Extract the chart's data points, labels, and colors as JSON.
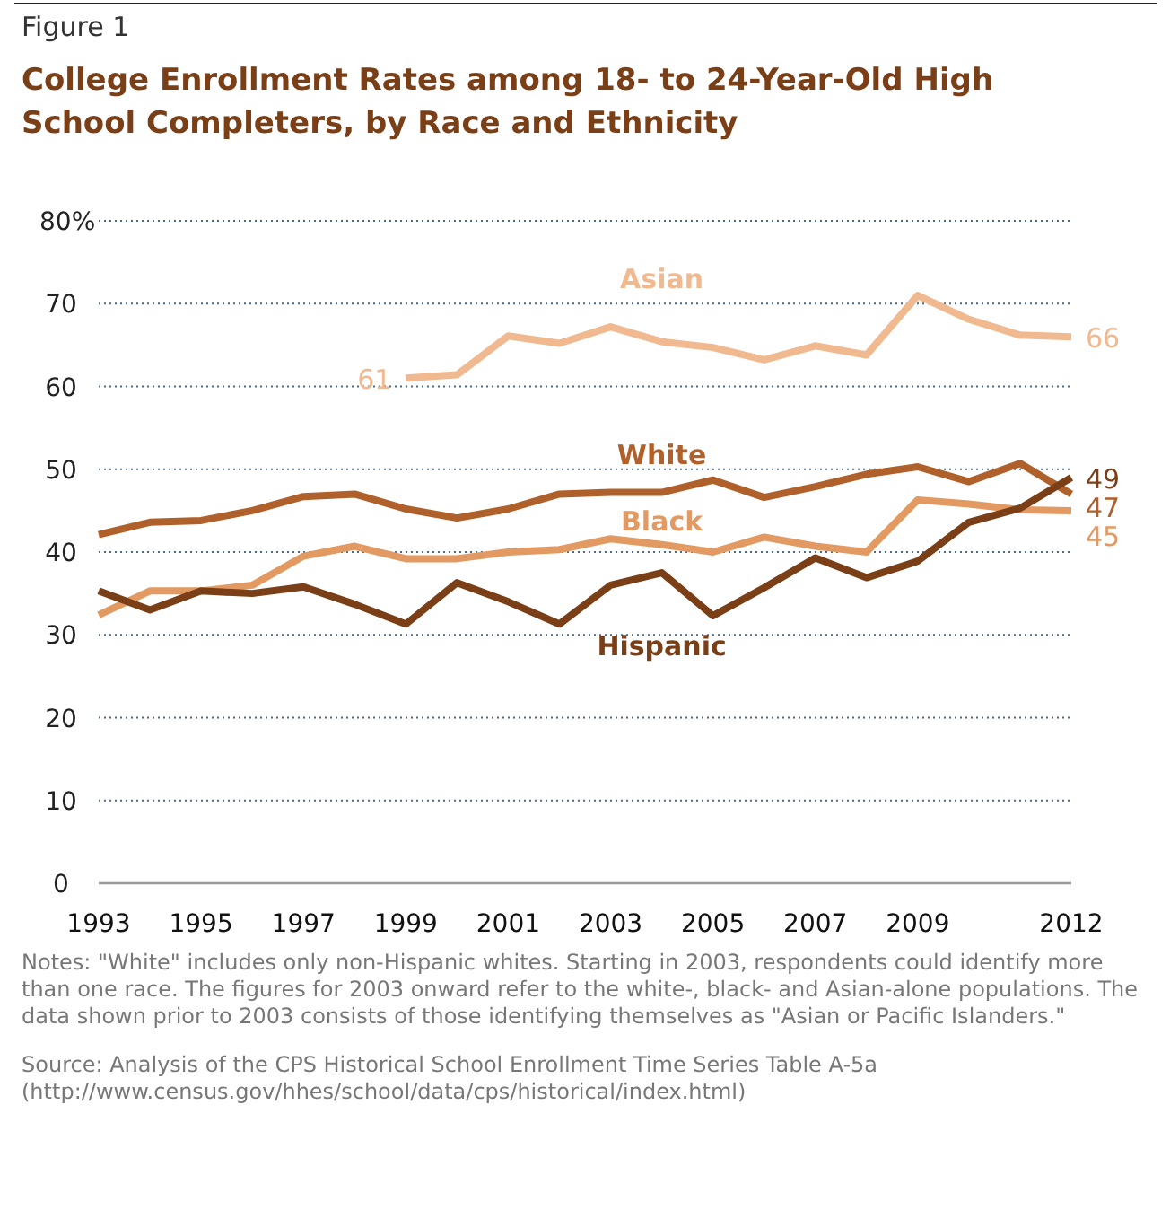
{
  "chart_data": {
    "type": "line",
    "title": "College Enrollment Rates among 18- to 24-Year-Old High School Completers, by Race and Ethnicity",
    "annotations": [
      "Figure 1",
      "Notes: \"White\" includes only non-Hispanic whites. Starting in 2003, respondents could identify more than one race. The figures for 2003 onward refer to the white-, black- and Asian-alone populations. The data shown prior to 2003 consists of those identifying themselves as \"Asian or Pacific Islanders.\"",
      "Source: Analysis of the CPS Historical School Enrollment Time Series Table A-5a (http://www.census.gov/hhes/school/data/cps/historical/index.html)"
    ],
    "x": [
      1993,
      1994,
      1995,
      1996,
      1997,
      1998,
      1999,
      2000,
      2001,
      2002,
      2003,
      2004,
      2005,
      2006,
      2007,
      2008,
      2009,
      2010,
      2011,
      2012
    ],
    "series": [
      {
        "name": "Asian",
        "color": "#f0b990",
        "values": [
          null,
          null,
          null,
          null,
          null,
          null,
          61,
          61.4,
          66.1,
          65.2,
          67.2,
          65.4,
          64.7,
          63.2,
          64.9,
          63.8,
          71.0,
          68.1,
          66.2,
          66
        ],
        "value_labels": [
          null,
          null,
          null,
          null,
          null,
          null,
          "61",
          null,
          null,
          null,
          null,
          null,
          null,
          null,
          null,
          null,
          null,
          null,
          null,
          "66"
        ]
      },
      {
        "name": "White",
        "color": "#b0602a",
        "values": [
          42.1,
          43.6,
          43.8,
          45.0,
          46.7,
          47.0,
          45.2,
          44.1,
          45.2,
          47.0,
          47.2,
          47.2,
          48.7,
          46.6,
          47.9,
          49.4,
          50.3,
          48.5,
          50.7,
          47
        ],
        "value_labels": [
          null,
          null,
          null,
          null,
          null,
          null,
          null,
          null,
          null,
          null,
          null,
          null,
          null,
          null,
          null,
          null,
          null,
          null,
          null,
          "47"
        ]
      },
      {
        "name": "Black",
        "color": "#e39a62",
        "values": [
          32.4,
          35.3,
          35.3,
          36.0,
          39.5,
          40.7,
          39.2,
          39.2,
          40.0,
          40.3,
          41.6,
          40.9,
          40.0,
          41.8,
          40.7,
          40.0,
          46.3,
          45.8,
          45.1,
          45
        ],
        "value_labels": [
          null,
          null,
          null,
          null,
          null,
          null,
          null,
          null,
          null,
          null,
          null,
          null,
          null,
          null,
          null,
          null,
          null,
          null,
          null,
          "45"
        ]
      },
      {
        "name": "Hispanic",
        "color": "#7a3f16",
        "values": [
          35.3,
          33.0,
          35.3,
          35.0,
          35.8,
          33.7,
          31.3,
          36.3,
          34.0,
          31.3,
          36.0,
          37.5,
          32.3,
          35.7,
          39.3,
          36.9,
          38.9,
          43.6,
          45.3,
          49
        ],
        "value_labels": [
          null,
          null,
          null,
          null,
          null,
          null,
          null,
          null,
          null,
          null,
          null,
          null,
          null,
          null,
          null,
          null,
          null,
          null,
          null,
          "49"
        ]
      }
    ],
    "xlim": [
      1993,
      2012
    ],
    "xticks": [
      1993,
      1995,
      1997,
      1999,
      2001,
      2003,
      2005,
      2007,
      2009,
      2012
    ],
    "ylim": [
      0,
      80
    ],
    "yticks": [
      0,
      10,
      20,
      30,
      40,
      50,
      60,
      70,
      {
        "value": 80,
        "label": "80%"
      }
    ],
    "grid": "y",
    "line_style": "solid",
    "marker": "none"
  }
}
